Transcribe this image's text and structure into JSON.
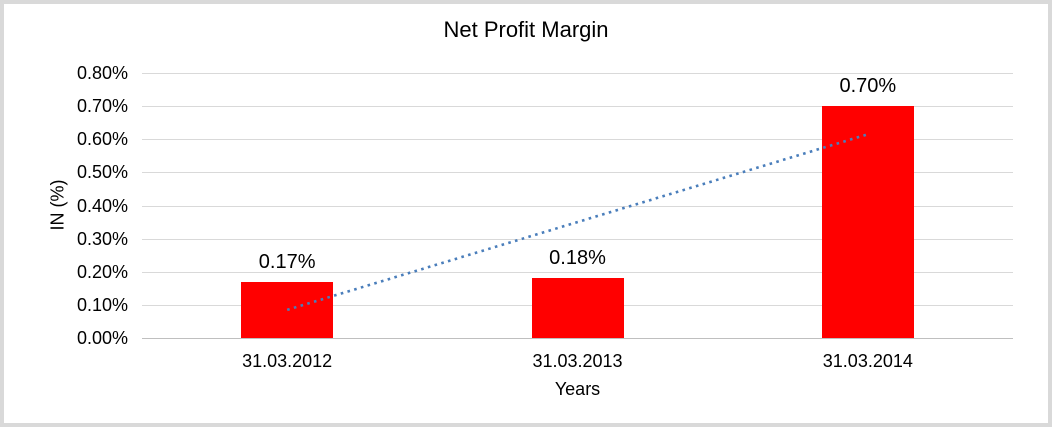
{
  "window": {
    "background_color": "#FFFFFF",
    "border_color": "#D9D9D9"
  },
  "colors": {
    "bar": "#FF0000",
    "trendline": "#4A7EBB",
    "gridline": "#D9D9D9",
    "axis_line": "#BFBFBF",
    "text": "#000000"
  },
  "chart_data": {
    "type": "bar",
    "title": "Net Profit Margin",
    "xlabel": "Years",
    "ylabel": "IN (%)",
    "categories": [
      "31.03.2012",
      "31.03.2013",
      "31.03.2014"
    ],
    "values": [
      0.17,
      0.18,
      0.7
    ],
    "data_labels": [
      "0.17%",
      "0.18%",
      "0.70%"
    ],
    "ylim": [
      0,
      0.8
    ],
    "y_tick_step": 0.1,
    "y_tick_labels": [
      "0.00%",
      "0.10%",
      "0.20%",
      "0.30%",
      "0.40%",
      "0.50%",
      "0.60%",
      "0.70%",
      "0.80%"
    ],
    "grid": true,
    "legend": false,
    "bar_color": "#FF0000",
    "trendline": {
      "type": "linear",
      "style": "dotted",
      "color": "#4A7EBB",
      "start_value": 0.085,
      "end_value": 0.615
    }
  }
}
